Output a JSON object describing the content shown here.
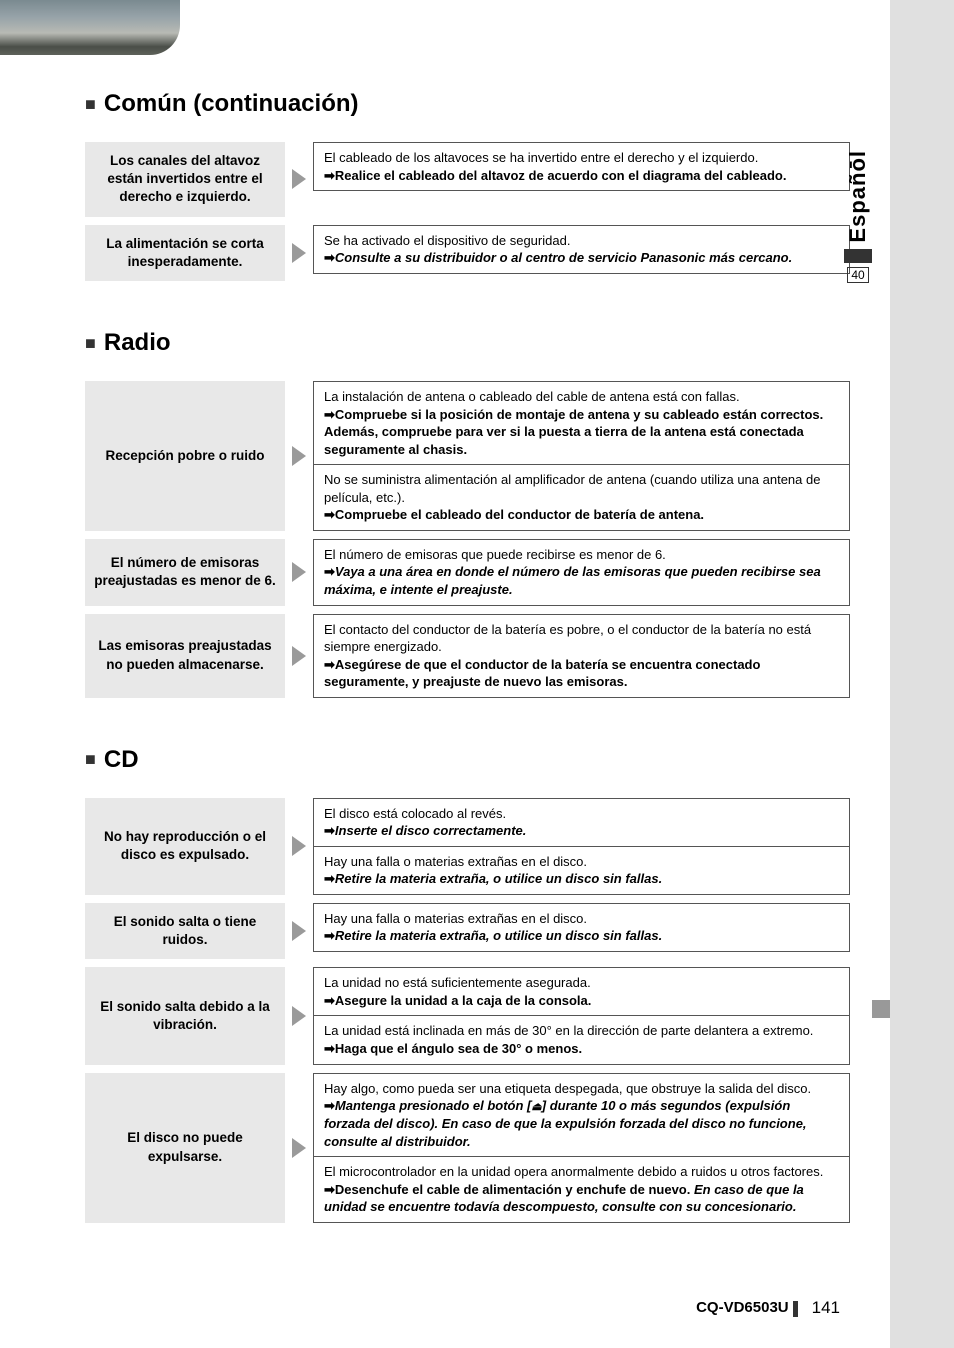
{
  "language_tab": "Españōl",
  "side_page_ref": "40",
  "model": "CQ-VD6503U",
  "page_number": "141",
  "sections": {
    "comun": {
      "title": "Común (continuación)",
      "rows": [
        {
          "problem": "Los canales del altavoz están invertidos entre el derecho e izquierdo.",
          "solutions": [
            {
              "cause": "El cableado de los altavoces se ha invertido entre el derecho y el izquierdo.",
              "action": "Realice el cableado del altavoz de acuerdo con el diagrama del cableado.",
              "style": "bold"
            }
          ]
        },
        {
          "problem": "La alimentación se corta inesperadamente.",
          "solutions": [
            {
              "cause": "Se ha activado el dispositivo de seguridad.",
              "action": "Consulte a su distribuidor o al centro de servicio Panasonic más cercano.",
              "style": "bolditalic"
            }
          ]
        }
      ]
    },
    "radio": {
      "title": "Radio",
      "rows": [
        {
          "problem": "Recepción pobre o ruido",
          "solutions": [
            {
              "cause": "La instalación de antena o cableado del cable de antena está con fallas.",
              "action": "Compruebe si la posición de montaje de antena y su cableado están correctos. Además, compruebe para ver si la puesta a tierra de la antena está conectada seguramente al chasis.",
              "style": "bold"
            },
            {
              "cause": "No se suministra alimentación al amplificador de antena (cuando utiliza una antena de película, etc.).",
              "action": "Compruebe el cableado del conductor de batería de antena.",
              "style": "bold"
            }
          ]
        },
        {
          "problem": "El número de emisoras preajustadas es menor de 6.",
          "solutions": [
            {
              "cause": "El número de emisoras que puede recibirse es menor de 6.",
              "action": "Vaya a una área en donde el número de las emisoras que pueden recibirse sea máxima, e intente el preajuste.",
              "style": "bolditalic"
            }
          ]
        },
        {
          "problem": "Las emisoras preajustadas no pueden almacenarse.",
          "solutions": [
            {
              "cause": "El contacto del conductor de la batería es pobre, o el conductor de la batería no está siempre energizado.",
              "action": "Asegúrese de que el conductor de la batería se encuentra conectado seguramente, y preajuste de nuevo las emisoras.",
              "style": "bold"
            }
          ]
        }
      ]
    },
    "cd": {
      "title": "CD",
      "rows": [
        {
          "problem": "No hay reproducción o el disco es expulsado.",
          "solutions": [
            {
              "cause": "El disco está colocado al revés.",
              "action": "Inserte el disco correctamente.",
              "style": "bolditalic"
            },
            {
              "cause": "Hay una falla o materias extrañas en el disco.",
              "action": "Retire la materia extraña, o utilice un disco sin fallas.",
              "style": "bolditalic"
            }
          ]
        },
        {
          "problem": "El sonido salta o tiene ruidos.",
          "solutions": [
            {
              "cause": "Hay una falla o materias extrañas en el disco.",
              "action": "Retire la materia extraña, o utilice un disco sin fallas.",
              "style": "bolditalic"
            }
          ]
        },
        {
          "problem": "El sonido salta debido a la vibración.",
          "solutions": [
            {
              "cause": "La unidad no está suficientemente asegurada.",
              "action": "Asegure la unidad a la caja de la consola.",
              "style": "bold"
            },
            {
              "cause": "La unidad está inclinada en más de 30° en la dirección de parte delantera a extremo.",
              "action": "Haga que el ángulo sea de 30° o menos.",
              "style": "bold"
            }
          ]
        },
        {
          "problem": "El disco no puede expulsarse.",
          "solutions": [
            {
              "cause": "Hay algo, como pueda ser una etiqueta despegada, que obstruye la salida del disco.",
              "action_html": "eject",
              "style": "bolditalic"
            },
            {
              "cause": "El microcontrolador en la unidad opera anormalmente debido a ruidos u otros factores.",
              "action_combo_bold": "Desenchufe el cable de alimentación y enchufe de nuevo. ",
              "action_combo_italic": "En caso de que la unidad se encuentre todavía descompuesto, consulte con su concesionario.",
              "style": "combo"
            }
          ]
        }
      ]
    }
  },
  "eject_action_pre": "Mantenga presionado el botón [",
  "eject_action_post": "] durante 10 o más segundos (expulsión forzada del disco). En caso de que la expulsión forzada del disco no funcione, consulte al distribuidor.",
  "colors": {
    "page_bg": "#ffffff",
    "outer_bg": "#e0e0e0",
    "problem_bg": "#e8e8e8",
    "border": "#555555",
    "arrow_fill": "#9a9a9a"
  }
}
